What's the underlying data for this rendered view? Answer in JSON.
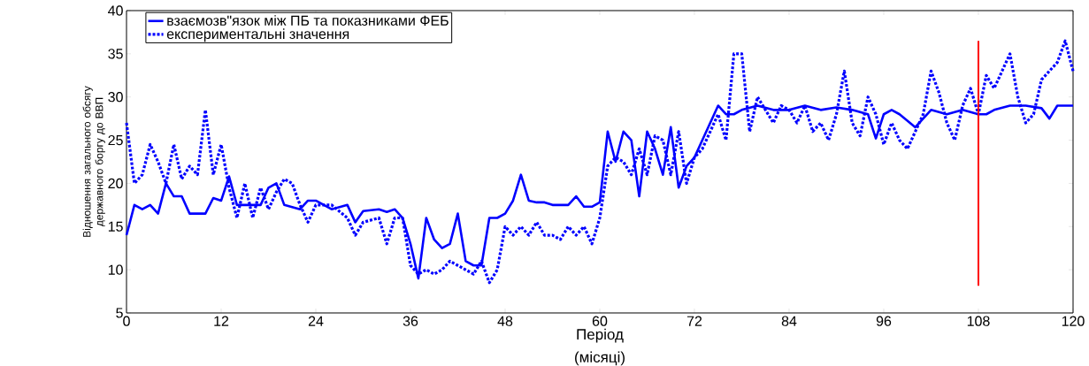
{
  "chart_data": {
    "type": "line",
    "xlabel": "Період",
    "ylabel": "Відношення загального обсягу державного боргу до ВВП",
    "annotations": [
      "(місяці)"
    ],
    "xlim": [
      0,
      120
    ],
    "xticks": [
      0,
      12,
      24,
      36,
      48,
      60,
      72,
      84,
      96,
      108,
      120
    ],
    "ylim": [
      5,
      40
    ],
    "yticks": [
      5,
      10,
      15,
      20,
      25,
      30,
      35,
      40
    ],
    "grid": false,
    "legend": "top left",
    "marker": "none",
    "ref_lines": [
      {
        "axis": "x",
        "value": 108,
        "color": "#ff0000",
        "line_style": "solid"
      }
    ],
    "series": [
      {
        "name": "взаємозв\"язок між ПБ та показниками ФЕБ",
        "color": "#0000ff",
        "line_style": "solid",
        "x": [
          0,
          1,
          2,
          3,
          4,
          5,
          6,
          7,
          8,
          10,
          11,
          12,
          13,
          14,
          16,
          17,
          18,
          19,
          20,
          22,
          23,
          24,
          26,
          28,
          29,
          30,
          32,
          33,
          34,
          35,
          36,
          37,
          38,
          39,
          40,
          41,
          42,
          43,
          44,
          45,
          46,
          47,
          48,
          49,
          50,
          51,
          52,
          53,
          54,
          56,
          57,
          58,
          59,
          60,
          61,
          62,
          63,
          64,
          65,
          66,
          67,
          68,
          69,
          70,
          71,
          72,
          73,
          74,
          75,
          76,
          77,
          78,
          80,
          82,
          84,
          86,
          88,
          90,
          92,
          94,
          95,
          96,
          97,
          98,
          100,
          102,
          104,
          106,
          108,
          109,
          110,
          112,
          114,
          116,
          117,
          118,
          120
        ],
        "values": [
          14,
          17.5,
          17,
          17.5,
          16.5,
          20,
          18.5,
          18.5,
          16.5,
          16.5,
          18.3,
          18,
          20.8,
          17.5,
          17.5,
          17.5,
          19.5,
          20,
          17.5,
          17,
          18,
          18,
          17,
          17.5,
          15.5,
          16.8,
          17,
          16.7,
          17,
          16,
          13,
          9,
          16,
          13.5,
          12.5,
          13,
          16.5,
          11,
          10.5,
          10.5,
          16,
          16,
          16.5,
          18,
          21,
          18,
          17.8,
          17.8,
          17.5,
          17.5,
          18.5,
          17.3,
          17.3,
          17.8,
          26,
          22.5,
          26,
          25,
          18.5,
          26,
          24,
          21,
          26.5,
          19.5,
          22,
          23,
          25,
          27,
          29,
          28,
          28,
          28.5,
          29,
          28.5,
          28.5,
          29,
          28.5,
          28.8,
          28.5,
          28,
          25.2,
          28,
          28.5,
          28,
          26.5,
          28.5,
          28,
          28.5,
          28,
          28,
          28.5,
          29,
          29,
          28.7,
          27.5,
          29,
          29
        ]
      },
      {
        "name": "експериментальні значення",
        "color": "#0000ff",
        "line_style": "dashed",
        "x": [
          0,
          1,
          2,
          3,
          4,
          5,
          6,
          7,
          8,
          9,
          10,
          11,
          12,
          13,
          14,
          15,
          16,
          17,
          18,
          19,
          20,
          21,
          22,
          23,
          24,
          26,
          28,
          29,
          30,
          32,
          33,
          34,
          35,
          36,
          37,
          38,
          39,
          40,
          41,
          42,
          43,
          44,
          45,
          46,
          47,
          48,
          49,
          50,
          51,
          52,
          53,
          54,
          55,
          56,
          57,
          58,
          59,
          60,
          61,
          62,
          63,
          64,
          65,
          66,
          67,
          68,
          69,
          70,
          71,
          72,
          73,
          74,
          75,
          76,
          77,
          78,
          79,
          80,
          81,
          82,
          83,
          84,
          85,
          86,
          87,
          88,
          89,
          90,
          91,
          92,
          93,
          94,
          95,
          96,
          97,
          98,
          99,
          100,
          101,
          102,
          103,
          104,
          105,
          106,
          107,
          108,
          109,
          110,
          111,
          112,
          113,
          114,
          115,
          116,
          117,
          118,
          119,
          120
        ],
        "values": [
          27,
          20,
          21,
          24.5,
          22.5,
          20,
          24.5,
          20.5,
          22,
          21,
          28.5,
          21,
          24.5,
          19.5,
          16,
          20,
          16,
          19.5,
          17,
          19,
          20.5,
          20,
          17.5,
          15.5,
          17.5,
          17.5,
          16,
          14,
          15.5,
          16,
          13,
          16,
          16,
          10.5,
          9.5,
          10,
          9.5,
          10,
          11,
          10.5,
          10,
          9.5,
          11,
          8.5,
          10,
          15,
          14,
          15,
          14,
          15.5,
          14,
          14,
          13.5,
          15,
          14,
          15,
          13,
          16,
          22,
          23,
          22.5,
          21,
          24,
          21,
          25.5,
          25,
          21,
          26,
          20,
          23,
          24,
          26,
          28,
          25,
          35,
          35,
          26,
          30,
          28.5,
          27,
          29,
          28.5,
          27,
          29,
          26,
          27,
          25,
          28,
          33,
          27,
          25.5,
          30,
          28,
          24.5,
          27,
          25,
          24,
          26,
          28,
          33,
          30.5,
          27,
          25,
          29,
          31,
          28,
          32.5,
          31,
          33,
          35,
          30,
          27,
          28,
          32,
          33,
          34,
          36.5,
          33
        ]
      }
    ]
  }
}
